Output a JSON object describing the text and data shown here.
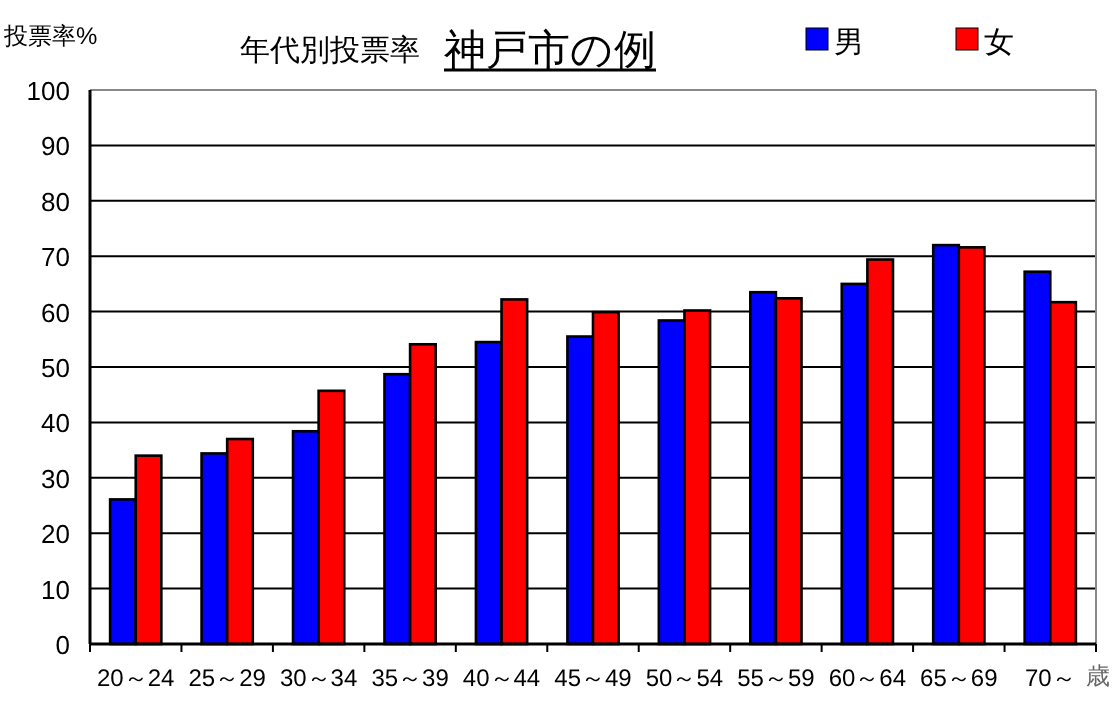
{
  "chart_data": {
    "type": "bar",
    "title": "年代別投票率",
    "subtitle": "神戸市の例",
    "xlabel": "歳",
    "ylabel": "投票率%",
    "categories": [
      "20～24",
      "25～29",
      "30～34",
      "35～39",
      "40～44",
      "45～49",
      "50～54",
      "55～59",
      "60～64",
      "65～69",
      "70～"
    ],
    "series": [
      {
        "name": "男",
        "color": "#0000ff",
        "values": [
          26.1,
          34.4,
          38.4,
          48.7,
          54.5,
          55.5,
          58.4,
          63.5,
          65.0,
          72.0,
          67.2
        ]
      },
      {
        "name": "女",
        "color": "#ff0000",
        "values": [
          34.0,
          37.0,
          45.7,
          54.1,
          62.2,
          59.9,
          60.2,
          62.4,
          69.4,
          71.6,
          61.7
        ]
      }
    ],
    "ylim": [
      0,
      100
    ],
    "yticks": [
      0,
      10,
      20,
      30,
      40,
      50,
      60,
      70,
      80,
      90,
      100
    ],
    "grid": "y",
    "legend": "top right"
  }
}
